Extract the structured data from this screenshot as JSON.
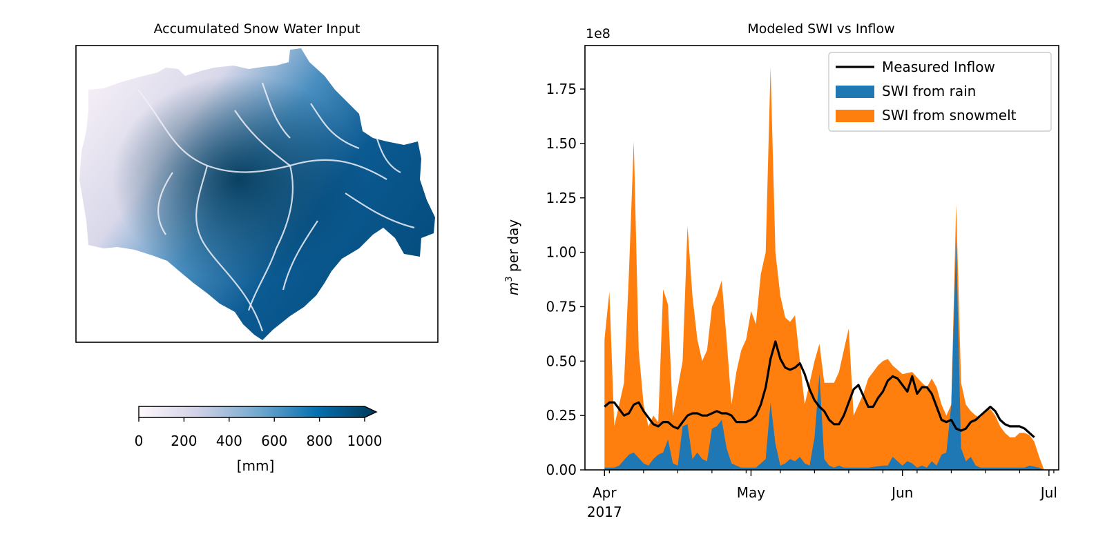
{
  "map_panel": {
    "title": "Accumulated Snow Water Input",
    "colorbar": {
      "label": "[mm]",
      "ticks": [
        "0",
        "200",
        "400",
        "600",
        "800",
        "1000"
      ],
      "range": [
        0,
        1000
      ],
      "extend": "max",
      "colors": [
        "#fff7fb",
        "#d0d1e6",
        "#74a9cf",
        "#0570b0",
        "#023858"
      ]
    }
  },
  "chart_data": {
    "type": "area",
    "title": "Modeled SWI vs Inflow",
    "ylabel": "m³ per day",
    "y_multiplier": "1e8",
    "ylim": [
      0,
      1.95
    ],
    "yticks": [
      0.0,
      0.25,
      0.5,
      0.75,
      1.0,
      1.25,
      1.5,
      1.75
    ],
    "ytick_labels": [
      "0.00",
      "0.25",
      "0.50",
      "0.75",
      "1.00",
      "1.25",
      "1.50",
      "1.75"
    ],
    "xlim": [
      "2017-03-28",
      "2017-07-03"
    ],
    "xticks": [
      {
        "date": "2017-04-01",
        "label": "Apr",
        "sublabel": "2017"
      },
      {
        "date": "2017-05-01",
        "label": "May",
        "sublabel": ""
      },
      {
        "date": "2017-06-01",
        "label": "Jun",
        "sublabel": ""
      },
      {
        "date": "2017-07-01",
        "label": "Jul",
        "sublabel": ""
      }
    ],
    "minor_xticks": [
      "2017-04-02",
      "2017-04-09",
      "2017-04-16",
      "2017-04-23",
      "2017-04-30",
      "2017-05-07",
      "2017-05-14",
      "2017-05-21",
      "2017-05-28",
      "2017-06-04",
      "2017-06-11",
      "2017-06-18",
      "2017-06-25",
      "2017-07-02"
    ],
    "legend_position": "top-right",
    "grid": false,
    "legend": [
      {
        "label": "Measured Inflow",
        "kind": "line",
        "color": "#000000"
      },
      {
        "label": "SWI from rain",
        "kind": "patch",
        "color": "#1f77b4"
      },
      {
        "label": "SWI from snowmelt",
        "kind": "patch",
        "color": "#ff7f0e"
      }
    ],
    "series": [
      {
        "name": "SWI from snowmelt",
        "kind": "area",
        "color": "#ff7f0e",
        "points": [
          [
            "2017-04-01",
            0.6
          ],
          [
            "2017-04-02",
            0.82
          ],
          [
            "2017-04-03",
            0.2
          ],
          [
            "2017-04-05",
            0.4
          ],
          [
            "2017-04-06",
            0.9
          ],
          [
            "2017-04-07",
            1.51
          ],
          [
            "2017-04-08",
            0.55
          ],
          [
            "2017-04-09",
            0.3
          ],
          [
            "2017-04-10",
            0.2
          ],
          [
            "2017-04-11",
            0.25
          ],
          [
            "2017-04-12",
            0.22
          ],
          [
            "2017-04-13",
            0.83
          ],
          [
            "2017-04-14",
            0.76
          ],
          [
            "2017-04-15",
            0.25
          ],
          [
            "2017-04-17",
            0.5
          ],
          [
            "2017-04-18",
            1.12
          ],
          [
            "2017-04-19",
            0.8
          ],
          [
            "2017-04-20",
            0.6
          ],
          [
            "2017-04-21",
            0.5
          ],
          [
            "2017-04-22",
            0.55
          ],
          [
            "2017-04-23",
            0.75
          ],
          [
            "2017-04-24",
            0.8
          ],
          [
            "2017-04-25",
            0.87
          ],
          [
            "2017-04-26",
            0.6
          ],
          [
            "2017-04-27",
            0.3
          ],
          [
            "2017-04-28",
            0.45
          ],
          [
            "2017-04-29",
            0.55
          ],
          [
            "2017-04-30",
            0.6
          ],
          [
            "2017-05-01",
            0.73
          ],
          [
            "2017-05-02",
            0.67
          ],
          [
            "2017-05-03",
            0.9
          ],
          [
            "2017-05-04",
            1.0
          ],
          [
            "2017-05-05",
            1.85
          ],
          [
            "2017-05-06",
            1.0
          ],
          [
            "2017-05-07",
            0.8
          ],
          [
            "2017-05-08",
            0.7
          ],
          [
            "2017-05-09",
            0.68
          ],
          [
            "2017-05-10",
            0.71
          ],
          [
            "2017-05-11",
            0.5
          ],
          [
            "2017-05-12",
            0.3
          ],
          [
            "2017-05-13",
            0.4
          ],
          [
            "2017-05-14",
            0.5
          ],
          [
            "2017-05-15",
            0.58
          ],
          [
            "2017-05-16",
            0.4
          ],
          [
            "2017-05-17",
            0.4
          ],
          [
            "2017-05-18",
            0.4
          ],
          [
            "2017-05-19",
            0.45
          ],
          [
            "2017-05-20",
            0.55
          ],
          [
            "2017-05-21",
            0.65
          ],
          [
            "2017-05-22",
            0.25
          ],
          [
            "2017-05-23",
            0.3
          ],
          [
            "2017-05-24",
            0.35
          ],
          [
            "2017-05-25",
            0.42
          ],
          [
            "2017-05-26",
            0.45
          ],
          [
            "2017-05-27",
            0.48
          ],
          [
            "2017-05-28",
            0.5
          ],
          [
            "2017-05-29",
            0.51
          ],
          [
            "2017-05-30",
            0.48
          ],
          [
            "2017-05-31",
            0.46
          ],
          [
            "2017-06-01",
            0.44
          ],
          [
            "2017-06-03",
            0.45
          ],
          [
            "2017-06-05",
            0.4
          ],
          [
            "2017-06-06",
            0.38
          ],
          [
            "2017-06-07",
            0.42
          ],
          [
            "2017-06-08",
            0.38
          ],
          [
            "2017-06-09",
            0.3
          ],
          [
            "2017-06-10",
            0.25
          ],
          [
            "2017-06-11",
            0.3
          ],
          [
            "2017-06-12",
            1.22
          ],
          [
            "2017-06-13",
            0.4
          ],
          [
            "2017-06-14",
            0.3
          ],
          [
            "2017-06-15",
            0.27
          ],
          [
            "2017-06-16",
            0.25
          ],
          [
            "2017-06-17",
            0.24
          ],
          [
            "2017-06-18",
            0.27
          ],
          [
            "2017-06-19",
            0.28
          ],
          [
            "2017-06-20",
            0.25
          ],
          [
            "2017-06-21",
            0.2
          ],
          [
            "2017-06-22",
            0.17
          ],
          [
            "2017-06-23",
            0.15
          ],
          [
            "2017-06-24",
            0.15
          ],
          [
            "2017-06-25",
            0.17
          ],
          [
            "2017-06-26",
            0.17
          ],
          [
            "2017-06-27",
            0.16
          ],
          [
            "2017-06-28",
            0.13
          ],
          [
            "2017-06-29",
            0.06
          ],
          [
            "2017-06-30",
            0.0
          ]
        ]
      },
      {
        "name": "SWI from rain",
        "kind": "area",
        "color": "#1f77b4",
        "points": [
          [
            "2017-04-01",
            0.01
          ],
          [
            "2017-04-03",
            0.01
          ],
          [
            "2017-04-04",
            0.02
          ],
          [
            "2017-04-06",
            0.07
          ],
          [
            "2017-04-07",
            0.08
          ],
          [
            "2017-04-09",
            0.03
          ],
          [
            "2017-04-10",
            0.02
          ],
          [
            "2017-04-11",
            0.05
          ],
          [
            "2017-04-12",
            0.07
          ],
          [
            "2017-04-13",
            0.08
          ],
          [
            "2017-04-14",
            0.14
          ],
          [
            "2017-04-15",
            0.03
          ],
          [
            "2017-04-16",
            0.02
          ],
          [
            "2017-04-17",
            0.2
          ],
          [
            "2017-04-18",
            0.21
          ],
          [
            "2017-04-19",
            0.05
          ],
          [
            "2017-04-20",
            0.08
          ],
          [
            "2017-04-21",
            0.05
          ],
          [
            "2017-04-22",
            0.04
          ],
          [
            "2017-04-23",
            0.19
          ],
          [
            "2017-04-24",
            0.2
          ],
          [
            "2017-04-25",
            0.23
          ],
          [
            "2017-04-26",
            0.1
          ],
          [
            "2017-04-27",
            0.03
          ],
          [
            "2017-04-28",
            0.02
          ],
          [
            "2017-04-29",
            0.01
          ],
          [
            "2017-05-02",
            0.01
          ],
          [
            "2017-05-03",
            0.03
          ],
          [
            "2017-05-04",
            0.05
          ],
          [
            "2017-05-05",
            0.31
          ],
          [
            "2017-05-06",
            0.12
          ],
          [
            "2017-05-07",
            0.02
          ],
          [
            "2017-05-08",
            0.03
          ],
          [
            "2017-05-09",
            0.05
          ],
          [
            "2017-05-10",
            0.04
          ],
          [
            "2017-05-11",
            0.06
          ],
          [
            "2017-05-12",
            0.03
          ],
          [
            "2017-05-13",
            0.02
          ],
          [
            "2017-05-14",
            0.15
          ],
          [
            "2017-05-15",
            0.44
          ],
          [
            "2017-05-16",
            0.05
          ],
          [
            "2017-05-17",
            0.02
          ],
          [
            "2017-05-18",
            0.01
          ],
          [
            "2017-05-19",
            0.02
          ],
          [
            "2017-05-20",
            0.01
          ],
          [
            "2017-05-22",
            0.01
          ],
          [
            "2017-05-25",
            0.01
          ],
          [
            "2017-05-28",
            0.02
          ],
          [
            "2017-05-29",
            0.02
          ],
          [
            "2017-05-30",
            0.06
          ],
          [
            "2017-05-31",
            0.04
          ],
          [
            "2017-06-01",
            0.02
          ],
          [
            "2017-06-02",
            0.04
          ],
          [
            "2017-06-03",
            0.03
          ],
          [
            "2017-06-04",
            0.01
          ],
          [
            "2017-06-05",
            0.02
          ],
          [
            "2017-06-06",
            0.01
          ],
          [
            "2017-06-07",
            0.04
          ],
          [
            "2017-06-08",
            0.02
          ],
          [
            "2017-06-09",
            0.07
          ],
          [
            "2017-06-10",
            0.08
          ],
          [
            "2017-06-11",
            0.3
          ],
          [
            "2017-06-12",
            1.05
          ],
          [
            "2017-06-13",
            0.1
          ],
          [
            "2017-06-14",
            0.04
          ],
          [
            "2017-06-15",
            0.06
          ],
          [
            "2017-06-16",
            0.02
          ],
          [
            "2017-06-17",
            0.01
          ],
          [
            "2017-06-19",
            0.01
          ],
          [
            "2017-06-21",
            0.01
          ],
          [
            "2017-06-23",
            0.01
          ],
          [
            "2017-06-26",
            0.01
          ],
          [
            "2017-06-27",
            0.02
          ],
          [
            "2017-06-29",
            0.01
          ],
          [
            "2017-06-30",
            0.0
          ]
        ]
      },
      {
        "name": "Measured Inflow",
        "kind": "line",
        "color": "#000000",
        "points": [
          [
            "2017-04-01",
            0.29
          ],
          [
            "2017-04-02",
            0.31
          ],
          [
            "2017-04-03",
            0.31
          ],
          [
            "2017-04-04",
            0.28
          ],
          [
            "2017-04-05",
            0.25
          ],
          [
            "2017-04-06",
            0.26
          ],
          [
            "2017-04-07",
            0.3
          ],
          [
            "2017-04-08",
            0.31
          ],
          [
            "2017-04-09",
            0.27
          ],
          [
            "2017-04-10",
            0.24
          ],
          [
            "2017-04-11",
            0.21
          ],
          [
            "2017-04-12",
            0.2
          ],
          [
            "2017-04-13",
            0.22
          ],
          [
            "2017-04-14",
            0.22
          ],
          [
            "2017-04-15",
            0.2
          ],
          [
            "2017-04-16",
            0.19
          ],
          [
            "2017-04-17",
            0.22
          ],
          [
            "2017-04-18",
            0.25
          ],
          [
            "2017-04-19",
            0.26
          ],
          [
            "2017-04-20",
            0.26
          ],
          [
            "2017-04-21",
            0.25
          ],
          [
            "2017-04-22",
            0.25
          ],
          [
            "2017-04-23",
            0.26
          ],
          [
            "2017-04-24",
            0.27
          ],
          [
            "2017-04-25",
            0.26
          ],
          [
            "2017-04-26",
            0.26
          ],
          [
            "2017-04-27",
            0.25
          ],
          [
            "2017-04-28",
            0.22
          ],
          [
            "2017-04-29",
            0.22
          ],
          [
            "2017-04-30",
            0.22
          ],
          [
            "2017-05-01",
            0.23
          ],
          [
            "2017-05-02",
            0.25
          ],
          [
            "2017-05-03",
            0.3
          ],
          [
            "2017-05-04",
            0.38
          ],
          [
            "2017-05-05",
            0.51
          ],
          [
            "2017-05-06",
            0.59
          ],
          [
            "2017-05-07",
            0.51
          ],
          [
            "2017-05-08",
            0.47
          ],
          [
            "2017-05-09",
            0.46
          ],
          [
            "2017-05-10",
            0.47
          ],
          [
            "2017-05-11",
            0.49
          ],
          [
            "2017-05-12",
            0.44
          ],
          [
            "2017-05-13",
            0.37
          ],
          [
            "2017-05-14",
            0.32
          ],
          [
            "2017-05-15",
            0.29
          ],
          [
            "2017-05-16",
            0.27
          ],
          [
            "2017-05-17",
            0.23
          ],
          [
            "2017-05-18",
            0.21
          ],
          [
            "2017-05-19",
            0.21
          ],
          [
            "2017-05-20",
            0.25
          ],
          [
            "2017-05-21",
            0.31
          ],
          [
            "2017-05-22",
            0.37
          ],
          [
            "2017-05-23",
            0.39
          ],
          [
            "2017-05-24",
            0.34
          ],
          [
            "2017-05-25",
            0.29
          ],
          [
            "2017-05-26",
            0.29
          ],
          [
            "2017-05-27",
            0.33
          ],
          [
            "2017-05-28",
            0.36
          ],
          [
            "2017-05-29",
            0.41
          ],
          [
            "2017-05-30",
            0.43
          ],
          [
            "2017-05-31",
            0.42
          ],
          [
            "2017-06-01",
            0.39
          ],
          [
            "2017-06-02",
            0.36
          ],
          [
            "2017-06-03",
            0.43
          ],
          [
            "2017-06-04",
            0.35
          ],
          [
            "2017-06-05",
            0.38
          ],
          [
            "2017-06-06",
            0.38
          ],
          [
            "2017-06-07",
            0.35
          ],
          [
            "2017-06-08",
            0.29
          ],
          [
            "2017-06-09",
            0.23
          ],
          [
            "2017-06-10",
            0.22
          ],
          [
            "2017-06-11",
            0.23
          ],
          [
            "2017-06-12",
            0.19
          ],
          [
            "2017-06-13",
            0.18
          ],
          [
            "2017-06-14",
            0.19
          ],
          [
            "2017-06-15",
            0.22
          ],
          [
            "2017-06-16",
            0.23
          ],
          [
            "2017-06-17",
            0.25
          ],
          [
            "2017-06-18",
            0.27
          ],
          [
            "2017-06-19",
            0.29
          ],
          [
            "2017-06-20",
            0.27
          ],
          [
            "2017-06-21",
            0.23
          ],
          [
            "2017-06-22",
            0.21
          ],
          [
            "2017-06-23",
            0.2
          ],
          [
            "2017-06-24",
            0.2
          ],
          [
            "2017-06-25",
            0.2
          ],
          [
            "2017-06-26",
            0.19
          ],
          [
            "2017-06-27",
            0.17
          ],
          [
            "2017-06-28",
            0.15
          ]
        ]
      }
    ]
  }
}
